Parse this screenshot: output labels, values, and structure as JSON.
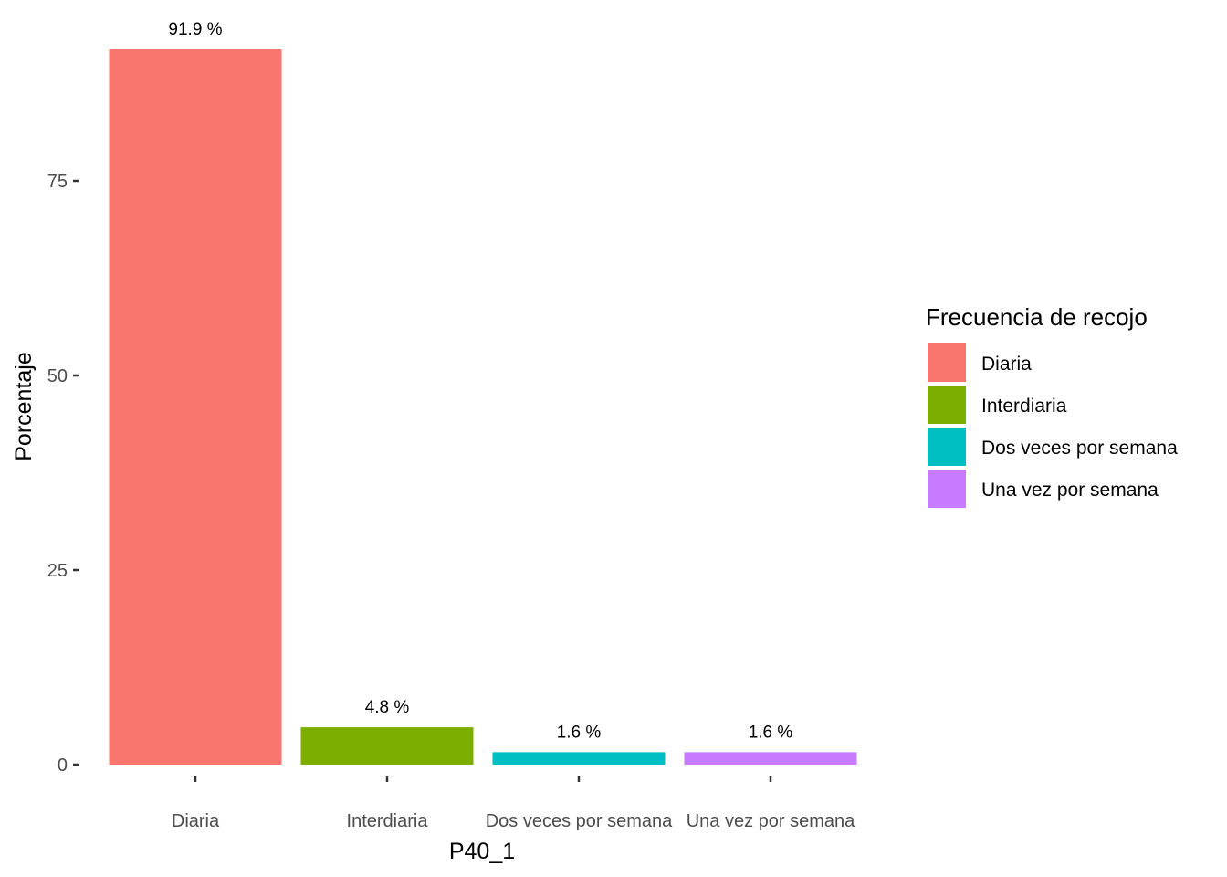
{
  "chart_data": {
    "type": "bar",
    "categories": [
      "Diaria",
      "Interdiaria",
      "Dos veces por semana",
      "Una vez por semana"
    ],
    "values": [
      91.9,
      4.8,
      1.6,
      1.6
    ],
    "value_labels": [
      "91.9 %",
      "4.8 %",
      "1.6 %",
      "1.6 %"
    ],
    "colors": [
      "#F8766D",
      "#7CAE00",
      "#00BFC4",
      "#C77CFF"
    ],
    "xlabel": "P40_1",
    "ylabel": "Porcentaje",
    "ylim": [
      0,
      91.9
    ],
    "yticks": [
      0,
      25,
      50,
      75
    ],
    "ytick_labels": [
      "0",
      "25",
      "50",
      "75"
    ],
    "grid": false,
    "legend": {
      "title": "Frecuencia de recojo",
      "position": "right",
      "entries": [
        "Diaria",
        "Interdiaria",
        "Dos veces por semana",
        "Una vez por semana"
      ]
    }
  }
}
